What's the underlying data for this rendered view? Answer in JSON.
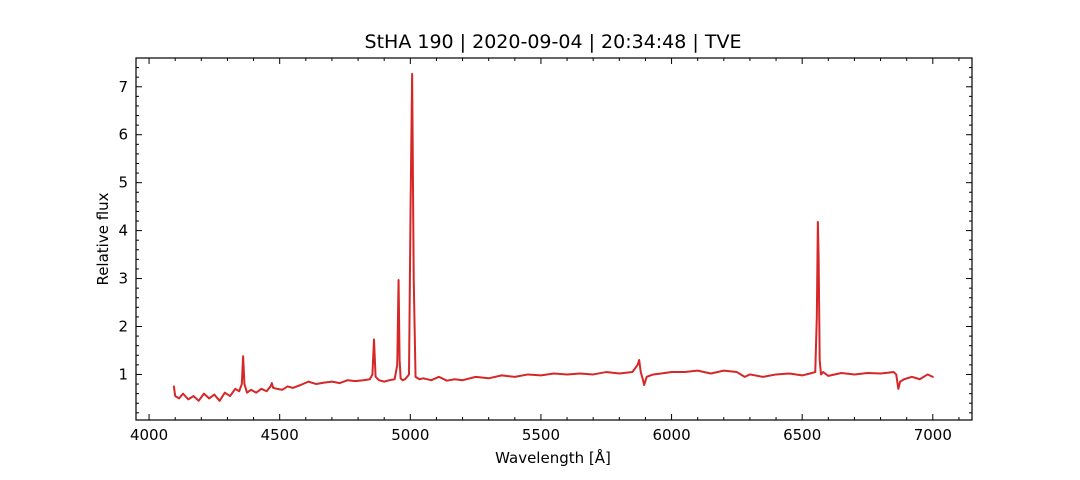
{
  "chart_data": {
    "type": "line",
    "title": "StHA 190 | 2020-09-04 | 20:34:48 | TVE",
    "xlabel": "Wavelength [Å]",
    "ylabel": "Relative flux",
    "xlim": [
      3950,
      7150
    ],
    "ylim": [
      0.05,
      7.6
    ],
    "x_ticks": [
      4000,
      4500,
      5000,
      5500,
      6000,
      6500,
      7000
    ],
    "y_ticks": [
      1,
      2,
      3,
      4,
      5,
      6,
      7
    ],
    "x_minor_step": 100,
    "y_minor_step": 0.2,
    "ticks_direction": "in",
    "grid": false,
    "legend": "none",
    "color": "#d62728",
    "series": [
      {
        "x": [
          4095,
          4100,
          4115,
          4130,
          4150,
          4170,
          4190,
          4210,
          4230,
          4250,
          4270,
          4290,
          4310,
          4330,
          4345,
          4355,
          4360,
          4365,
          4375,
          4390,
          4410,
          4430,
          4450,
          4465,
          4470,
          4475,
          4490,
          4510,
          4530,
          4550,
          4580,
          4610,
          4640,
          4670,
          4700,
          4730,
          4760,
          4790,
          4820,
          4845,
          4855,
          4861,
          4867,
          4880,
          4900,
          4920,
          4940,
          4950,
          4955,
          4959,
          4963,
          4970,
          4980,
          4995,
          5001,
          5007,
          5013,
          5020,
          5035,
          5050,
          5080,
          5110,
          5140,
          5170,
          5200,
          5250,
          5300,
          5350,
          5400,
          5450,
          5500,
          5550,
          5600,
          5650,
          5700,
          5750,
          5800,
          5850,
          5870,
          5876,
          5882,
          5890,
          5895,
          5905,
          5930,
          5960,
          6000,
          6050,
          6100,
          6150,
          6200,
          6250,
          6280,
          6300,
          6350,
          6400,
          6450,
          6500,
          6530,
          6550,
          6556,
          6560,
          6563,
          6567,
          6572,
          6580,
          6600,
          6650,
          6700,
          6750,
          6800,
          6850,
          6860,
          6868,
          6875,
          6890,
          6920,
          6950,
          6980,
          7000
        ],
        "y": [
          0.75,
          0.55,
          0.5,
          0.6,
          0.48,
          0.55,
          0.45,
          0.6,
          0.5,
          0.58,
          0.45,
          0.62,
          0.55,
          0.7,
          0.65,
          0.8,
          1.38,
          0.8,
          0.62,
          0.68,
          0.62,
          0.7,
          0.65,
          0.75,
          0.82,
          0.72,
          0.7,
          0.68,
          0.75,
          0.72,
          0.78,
          0.85,
          0.8,
          0.83,
          0.85,
          0.82,
          0.88,
          0.86,
          0.88,
          0.9,
          1.0,
          1.73,
          0.95,
          0.88,
          0.85,
          0.88,
          0.9,
          1.2,
          2.97,
          1.3,
          0.92,
          0.88,
          0.9,
          1.0,
          4.5,
          7.27,
          3.0,
          0.95,
          0.9,
          0.92,
          0.88,
          0.95,
          0.87,
          0.9,
          0.88,
          0.95,
          0.92,
          0.98,
          0.95,
          1.0,
          0.98,
          1.02,
          1.0,
          1.02,
          1.0,
          1.05,
          1.02,
          1.05,
          1.2,
          1.3,
          1.05,
          0.9,
          0.78,
          0.95,
          1.0,
          1.02,
          1.05,
          1.05,
          1.08,
          1.02,
          1.08,
          1.05,
          0.95,
          1.0,
          0.95,
          1.0,
          1.02,
          0.98,
          1.02,
          1.05,
          2.2,
          4.18,
          3.4,
          1.3,
          1.0,
          1.05,
          0.97,
          1.03,
          1.0,
          1.03,
          1.02,
          1.05,
          1.0,
          0.7,
          0.85,
          0.9,
          0.95,
          0.9,
          1.0,
          0.95
        ]
      }
    ]
  }
}
